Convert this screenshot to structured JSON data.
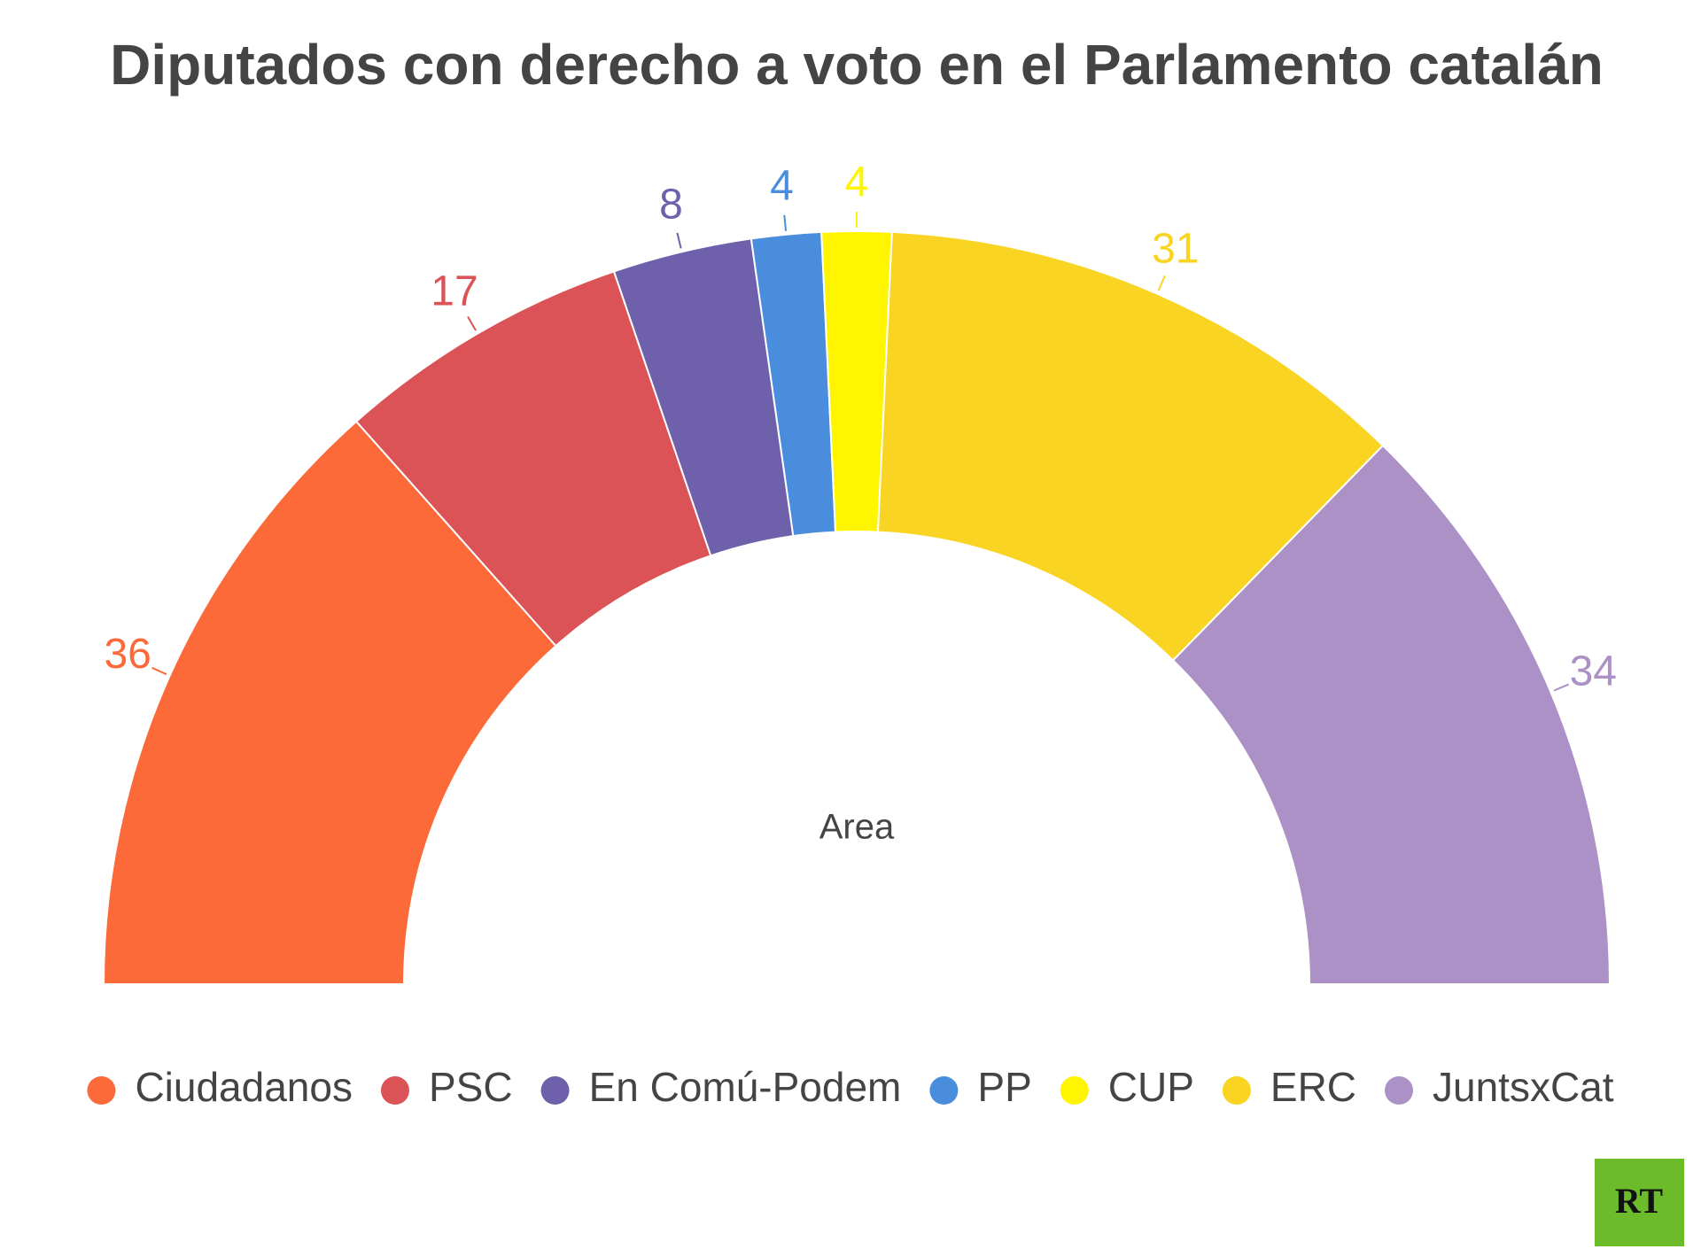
{
  "chart_data": {
    "type": "pie",
    "title": "Diputados con derecho a voto en el Parlamento catalán",
    "center_label": "Area",
    "categories": [
      "Ciudadanos",
      "PSC",
      "En Comú-Podem",
      "PP",
      "CUP",
      "ERC",
      "JuntsxCat"
    ],
    "values": [
      36,
      17,
      8,
      4,
      4,
      31,
      34
    ],
    "colors": [
      "#fd6a39",
      "#db5356",
      "#6e60aa",
      "#4a8ddc",
      "#fff500",
      "#f9d423",
      "#ac91c6"
    ],
    "legend": "bottom"
  },
  "logo": "RT"
}
